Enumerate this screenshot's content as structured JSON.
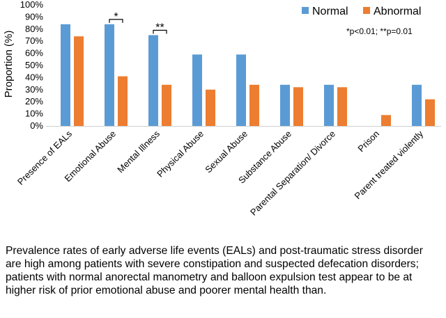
{
  "chart_data": {
    "type": "bar",
    "categories": [
      "Presence of EALs",
      "Emotional Abuse",
      "Mental Illness",
      "Physical Abuse",
      "Sexual Abuse",
      "Substance Abuse",
      "Parental Separation/ Divorce",
      "Prison",
      "Parent treated violently"
    ],
    "series": [
      {
        "name": "Normal",
        "color": "#5B9BD5",
        "values": [
          84,
          84,
          75,
          59,
          59,
          34,
          34,
          0,
          34
        ]
      },
      {
        "name": "Abnormal",
        "color": "#ED7D31",
        "values": [
          74,
          41,
          34,
          30,
          34,
          32,
          32,
          9,
          22
        ]
      }
    ],
    "ylabel": "Proportion (%)",
    "ylim": [
      0,
      100
    ],
    "yticks": [
      "0%",
      "10%",
      "20%",
      "30%",
      "40%",
      "50%",
      "60%",
      "70%",
      "80%",
      "90%",
      "100%"
    ],
    "significance": [
      {
        "category": "Emotional Abuse",
        "marker": "*"
      },
      {
        "category": "Mental Illness",
        "marker": "**"
      }
    ],
    "note": "*p<0.01; **p=0.01",
    "legend_position": "top-right"
  },
  "caption": "Prevalence rates of early adverse life events (EALs) and post-traumatic stress disorder are high among patients with severe constipation and suspected defecation disorders; patients with normal anorectal manometry and balloon expulsion test appear to be at higher risk of prior emotional abuse and poorer mental health than."
}
